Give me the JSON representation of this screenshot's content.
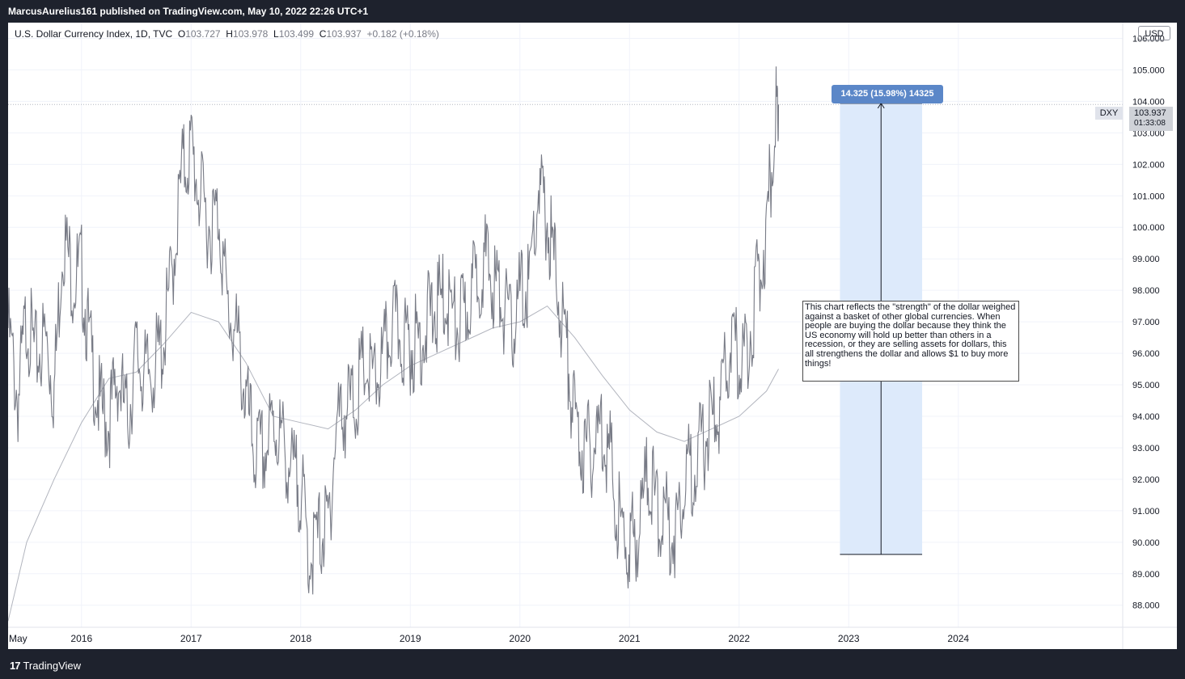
{
  "header": {
    "published": "MarcusAurelius161 published on TradingView.com, May 10, 2022 22:26 UTC+1"
  },
  "legend": {
    "symbol": "U.S. Dollar Currency Index, 1D, TVC",
    "o_label": "O",
    "o": "103.727",
    "h_label": "H",
    "h": "103.978",
    "l_label": "L",
    "l": "103.499",
    "c_label": "C",
    "c": "103.937",
    "change": "+0.182 (+0.18%)"
  },
  "currency_badge": "USD",
  "price_tag": {
    "ticker": "DXY",
    "price": "103.937",
    "countdown": "01:33:08"
  },
  "measure_label": "14.325 (15.98%) 14325",
  "annotation": "This chart reflects the \"strength\" of the dollar weighed against a basket of other global currencies. When people are buying the dollar because they think the US economy will hold up better than others in a recession, or they are selling assets for dollars, this all strengthens the dollar and allows $1 to buy more things!",
  "footer": {
    "brand": "TradingView"
  },
  "colors": {
    "price": "#787b86",
    "ma": "#b2b5be",
    "measure_fill": "#ddeafb",
    "measure_label": "#5b87c8",
    "background": "#1e222d"
  },
  "chart_data": {
    "type": "line",
    "title": "U.S. Dollar Currency Index, 1D, TVC",
    "xlabel": "",
    "ylabel": "",
    "x_tick_labels": [
      "May",
      "2016",
      "2017",
      "2018",
      "2019",
      "2020",
      "2021",
      "2022",
      "2023",
      "2024"
    ],
    "x_ticks": [
      2015.33,
      2016.0,
      2017.0,
      2018.0,
      2019.0,
      2020.0,
      2021.0,
      2022.0,
      2023.0,
      2024.0
    ],
    "y_tick_labels": [
      "88.000",
      "89.000",
      "90.000",
      "91.000",
      "92.000",
      "93.000",
      "94.000",
      "95.000",
      "96.000",
      "97.000",
      "98.000",
      "99.000",
      "100.000",
      "101.000",
      "102.000",
      "103.000",
      "104.000",
      "105.000",
      "106.000"
    ],
    "xlim": [
      2015.33,
      2025.5
    ],
    "ylim": [
      87.3,
      106.5
    ],
    "grid": true,
    "series": [
      {
        "name": "",
        "x": [
          2015.33,
          2015.42,
          2015.5,
          2015.58,
          2015.67,
          2015.75,
          2015.83,
          2015.92,
          2016.0,
          2016.08,
          2016.17,
          2016.25,
          2016.33,
          2016.42,
          2016.5,
          2016.58,
          2016.67,
          2016.75,
          2016.83,
          2016.92,
          2017.0,
          2017.08,
          2017.17,
          2017.25,
          2017.33,
          2017.42,
          2017.5,
          2017.58,
          2017.67,
          2017.75,
          2017.83,
          2017.92,
          2018.0,
          2018.08,
          2018.17,
          2018.25,
          2018.33,
          2018.42,
          2018.5,
          2018.58,
          2018.67,
          2018.75,
          2018.83,
          2018.92,
          2019.0,
          2019.08,
          2019.17,
          2019.25,
          2019.33,
          2019.42,
          2019.5,
          2019.58,
          2019.67,
          2019.75,
          2019.83,
          2019.92,
          2020.0,
          2020.08,
          2020.17,
          2020.25,
          2020.33,
          2020.42,
          2020.5,
          2020.58,
          2020.67,
          2020.75,
          2020.83,
          2020.92,
          2021.0,
          2021.08,
          2021.17,
          2021.25,
          2021.33,
          2021.42,
          2021.5,
          2021.58,
          2021.67,
          2021.75,
          2021.83,
          2021.92,
          2022.0,
          2022.08,
          2022.17,
          2022.25,
          2022.33,
          2022.36
        ],
        "y": [
          96.8,
          94.5,
          97.2,
          95.8,
          96.5,
          94.8,
          99.8,
          98.4,
          98.6,
          96.0,
          94.2,
          93.8,
          95.3,
          93.8,
          96.0,
          95.2,
          95.6,
          96.4,
          98.7,
          101.8,
          102.5,
          101.0,
          100.0,
          100.5,
          97.5,
          96.4,
          94.5,
          92.8,
          92.8,
          93.8,
          93.2,
          92.2,
          91.8,
          89.5,
          90.2,
          90.5,
          93.8,
          94.3,
          94.5,
          95.6,
          95.0,
          95.7,
          96.9,
          96.5,
          96.2,
          96.4,
          97.1,
          97.5,
          97.8,
          96.8,
          97.2,
          98.2,
          99.0,
          98.3,
          97.8,
          96.6,
          97.8,
          98.1,
          101.2,
          100.2,
          98.5,
          96.3,
          93.8,
          92.9,
          93.0,
          93.8,
          92.5,
          90.3,
          89.9,
          90.4,
          92.3,
          91.0,
          90.7,
          90.3,
          92.2,
          92.4,
          93.1,
          93.8,
          94.2,
          96.3,
          95.8,
          96.2,
          98.3,
          99.8,
          103.8,
          103.9
        ]
      },
      {
        "name": "",
        "x": [
          2015.33,
          2015.5,
          2015.75,
          2016.0,
          2016.25,
          2016.5,
          2016.75,
          2017.0,
          2017.25,
          2017.5,
          2017.75,
          2018.0,
          2018.25,
          2018.5,
          2018.75,
          2019.0,
          2019.25,
          2019.5,
          2019.75,
          2020.0,
          2020.25,
          2020.5,
          2020.75,
          2021.0,
          2021.25,
          2021.5,
          2021.75,
          2022.0,
          2022.25,
          2022.36
        ],
        "y": [
          87.5,
          90.0,
          92.0,
          93.8,
          95.2,
          95.4,
          96.3,
          97.3,
          97.0,
          95.7,
          94.0,
          93.8,
          93.6,
          94.2,
          95.0,
          95.6,
          96.0,
          96.4,
          96.8,
          97.0,
          97.5,
          96.5,
          95.3,
          94.2,
          93.5,
          93.2,
          93.6,
          94.0,
          94.8,
          95.5
        ]
      }
    ],
    "annotations": [
      {
        "type": "price_range",
        "x_start": 2022.92,
        "x_end": 2023.67,
        "y_start": 89.612,
        "y_end": 103.937,
        "label": "14.325 (15.98%) 14325"
      }
    ]
  }
}
